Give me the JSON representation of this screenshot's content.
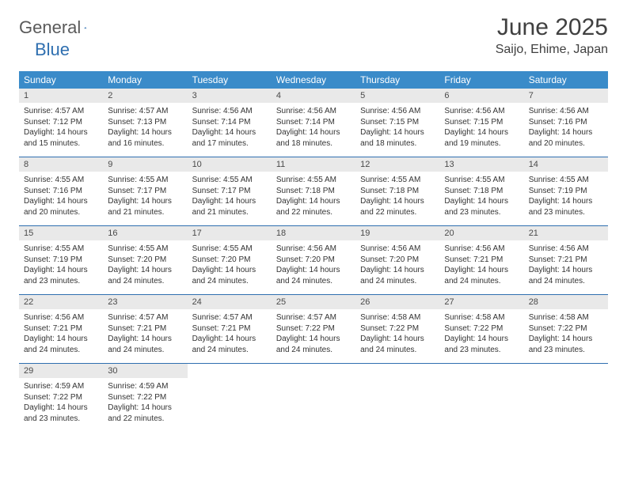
{
  "brand": {
    "general": "General",
    "blue": "Blue"
  },
  "title": "June 2025",
  "location": "Saijo, Ehime, Japan",
  "colors": {
    "header_bg": "#3a8bc9",
    "header_text": "#ffffff",
    "daynum_bg": "#e9e9e9",
    "rule": "#2f6fb0",
    "text": "#333333",
    "brand_gray": "#5a5a5a",
    "brand_blue": "#2f6fb0",
    "page_bg": "#ffffff"
  },
  "typography": {
    "title_fontsize": 30,
    "location_fontsize": 16,
    "dayhead_fontsize": 12,
    "daynum_fontsize": 11,
    "cell_fontsize": 10
  },
  "day_headers": [
    "Sunday",
    "Monday",
    "Tuesday",
    "Wednesday",
    "Thursday",
    "Friday",
    "Saturday"
  ],
  "weeks": [
    [
      {
        "n": "1",
        "sr": "Sunrise: 4:57 AM",
        "ss": "Sunset: 7:12 PM",
        "d1": "Daylight: 14 hours",
        "d2": "and 15 minutes."
      },
      {
        "n": "2",
        "sr": "Sunrise: 4:57 AM",
        "ss": "Sunset: 7:13 PM",
        "d1": "Daylight: 14 hours",
        "d2": "and 16 minutes."
      },
      {
        "n": "3",
        "sr": "Sunrise: 4:56 AM",
        "ss": "Sunset: 7:14 PM",
        "d1": "Daylight: 14 hours",
        "d2": "and 17 minutes."
      },
      {
        "n": "4",
        "sr": "Sunrise: 4:56 AM",
        "ss": "Sunset: 7:14 PM",
        "d1": "Daylight: 14 hours",
        "d2": "and 18 minutes."
      },
      {
        "n": "5",
        "sr": "Sunrise: 4:56 AM",
        "ss": "Sunset: 7:15 PM",
        "d1": "Daylight: 14 hours",
        "d2": "and 18 minutes."
      },
      {
        "n": "6",
        "sr": "Sunrise: 4:56 AM",
        "ss": "Sunset: 7:15 PM",
        "d1": "Daylight: 14 hours",
        "d2": "and 19 minutes."
      },
      {
        "n": "7",
        "sr": "Sunrise: 4:56 AM",
        "ss": "Sunset: 7:16 PM",
        "d1": "Daylight: 14 hours",
        "d2": "and 20 minutes."
      }
    ],
    [
      {
        "n": "8",
        "sr": "Sunrise: 4:55 AM",
        "ss": "Sunset: 7:16 PM",
        "d1": "Daylight: 14 hours",
        "d2": "and 20 minutes."
      },
      {
        "n": "9",
        "sr": "Sunrise: 4:55 AM",
        "ss": "Sunset: 7:17 PM",
        "d1": "Daylight: 14 hours",
        "d2": "and 21 minutes."
      },
      {
        "n": "10",
        "sr": "Sunrise: 4:55 AM",
        "ss": "Sunset: 7:17 PM",
        "d1": "Daylight: 14 hours",
        "d2": "and 21 minutes."
      },
      {
        "n": "11",
        "sr": "Sunrise: 4:55 AM",
        "ss": "Sunset: 7:18 PM",
        "d1": "Daylight: 14 hours",
        "d2": "and 22 minutes."
      },
      {
        "n": "12",
        "sr": "Sunrise: 4:55 AM",
        "ss": "Sunset: 7:18 PM",
        "d1": "Daylight: 14 hours",
        "d2": "and 22 minutes."
      },
      {
        "n": "13",
        "sr": "Sunrise: 4:55 AM",
        "ss": "Sunset: 7:18 PM",
        "d1": "Daylight: 14 hours",
        "d2": "and 23 minutes."
      },
      {
        "n": "14",
        "sr": "Sunrise: 4:55 AM",
        "ss": "Sunset: 7:19 PM",
        "d1": "Daylight: 14 hours",
        "d2": "and 23 minutes."
      }
    ],
    [
      {
        "n": "15",
        "sr": "Sunrise: 4:55 AM",
        "ss": "Sunset: 7:19 PM",
        "d1": "Daylight: 14 hours",
        "d2": "and 23 minutes."
      },
      {
        "n": "16",
        "sr": "Sunrise: 4:55 AM",
        "ss": "Sunset: 7:20 PM",
        "d1": "Daylight: 14 hours",
        "d2": "and 24 minutes."
      },
      {
        "n": "17",
        "sr": "Sunrise: 4:55 AM",
        "ss": "Sunset: 7:20 PM",
        "d1": "Daylight: 14 hours",
        "d2": "and 24 minutes."
      },
      {
        "n": "18",
        "sr": "Sunrise: 4:56 AM",
        "ss": "Sunset: 7:20 PM",
        "d1": "Daylight: 14 hours",
        "d2": "and 24 minutes."
      },
      {
        "n": "19",
        "sr": "Sunrise: 4:56 AM",
        "ss": "Sunset: 7:20 PM",
        "d1": "Daylight: 14 hours",
        "d2": "and 24 minutes."
      },
      {
        "n": "20",
        "sr": "Sunrise: 4:56 AM",
        "ss": "Sunset: 7:21 PM",
        "d1": "Daylight: 14 hours",
        "d2": "and 24 minutes."
      },
      {
        "n": "21",
        "sr": "Sunrise: 4:56 AM",
        "ss": "Sunset: 7:21 PM",
        "d1": "Daylight: 14 hours",
        "d2": "and 24 minutes."
      }
    ],
    [
      {
        "n": "22",
        "sr": "Sunrise: 4:56 AM",
        "ss": "Sunset: 7:21 PM",
        "d1": "Daylight: 14 hours",
        "d2": "and 24 minutes."
      },
      {
        "n": "23",
        "sr": "Sunrise: 4:57 AM",
        "ss": "Sunset: 7:21 PM",
        "d1": "Daylight: 14 hours",
        "d2": "and 24 minutes."
      },
      {
        "n": "24",
        "sr": "Sunrise: 4:57 AM",
        "ss": "Sunset: 7:21 PM",
        "d1": "Daylight: 14 hours",
        "d2": "and 24 minutes."
      },
      {
        "n": "25",
        "sr": "Sunrise: 4:57 AM",
        "ss": "Sunset: 7:22 PM",
        "d1": "Daylight: 14 hours",
        "d2": "and 24 minutes."
      },
      {
        "n": "26",
        "sr": "Sunrise: 4:58 AM",
        "ss": "Sunset: 7:22 PM",
        "d1": "Daylight: 14 hours",
        "d2": "and 24 minutes."
      },
      {
        "n": "27",
        "sr": "Sunrise: 4:58 AM",
        "ss": "Sunset: 7:22 PM",
        "d1": "Daylight: 14 hours",
        "d2": "and 23 minutes."
      },
      {
        "n": "28",
        "sr": "Sunrise: 4:58 AM",
        "ss": "Sunset: 7:22 PM",
        "d1": "Daylight: 14 hours",
        "d2": "and 23 minutes."
      }
    ],
    [
      {
        "n": "29",
        "sr": "Sunrise: 4:59 AM",
        "ss": "Sunset: 7:22 PM",
        "d1": "Daylight: 14 hours",
        "d2": "and 23 minutes."
      },
      {
        "n": "30",
        "sr": "Sunrise: 4:59 AM",
        "ss": "Sunset: 7:22 PM",
        "d1": "Daylight: 14 hours",
        "d2": "and 22 minutes."
      },
      null,
      null,
      null,
      null,
      null
    ]
  ]
}
